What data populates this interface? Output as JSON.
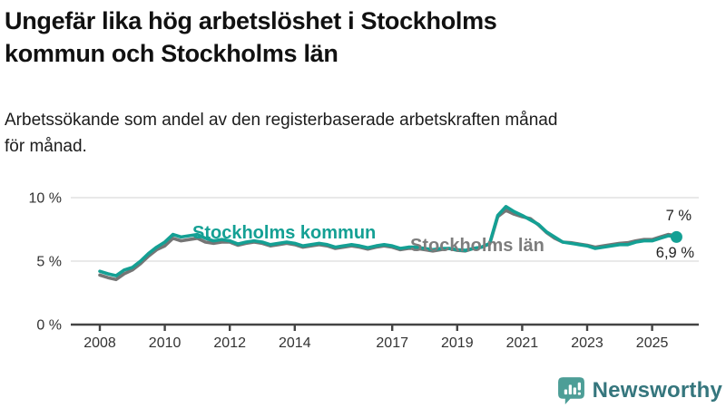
{
  "header": {
    "title": "Ungefär lika hög arbetslöshet i Stockholms\nkommun och Stockholms län",
    "subtitle": "Arbetssökande som andel av den registerbaserade arbetskraften månad\nför månad."
  },
  "chart_data": {
    "type": "line",
    "title": "Ungefär lika hög arbetslöshet i Stockholms kommun och Stockholms län",
    "xlabel": "",
    "ylabel": "Arbetssökande som andel av den registerbaserade arbetskraften",
    "x_domain": [
      2008,
      2026
    ],
    "y_domain": [
      0,
      10
    ],
    "grid": "horizontal",
    "x_label_ticks": [
      2008,
      2010,
      2012,
      2014,
      2017,
      2019,
      2021,
      2023,
      2025
    ],
    "y_ticks": [
      {
        "value": 0,
        "label": "0 %"
      },
      {
        "value": 5,
        "label": "5 %"
      },
      {
        "value": 10,
        "label": "10 %"
      }
    ],
    "x": [
      2008,
      2008.25,
      2008.5,
      2008.75,
      2009,
      2009.25,
      2009.5,
      2009.75,
      2010,
      2010.25,
      2010.5,
      2010.75,
      2011,
      2011.25,
      2011.5,
      2011.75,
      2012,
      2012.25,
      2012.5,
      2012.75,
      2013,
      2013.25,
      2013.5,
      2013.75,
      2014,
      2014.25,
      2014.5,
      2014.75,
      2015,
      2015.25,
      2015.5,
      2015.75,
      2016,
      2016.25,
      2016.5,
      2016.75,
      2017,
      2017.25,
      2017.5,
      2017.75,
      2018,
      2018.25,
      2018.5,
      2018.75,
      2019,
      2019.25,
      2019.5,
      2019.75,
      2020,
      2020.25,
      2020.5,
      2020.75,
      2021,
      2021.25,
      2021.5,
      2021.75,
      2022,
      2022.25,
      2022.5,
      2022.75,
      2023,
      2023.25,
      2023.5,
      2023.75,
      2024,
      2024.25,
      2024.5,
      2024.75,
      2025,
      2025.25,
      2025.5,
      2025.75
    ],
    "series": [
      {
        "id": "stockholms-lan",
        "name": "Stockholms län",
        "label": "Stockholms län",
        "color": "#757575",
        "label_color": "#7d7d7d",
        "end_label": "7 %",
        "end_value": 7.0,
        "values": [
          3.9,
          3.7,
          3.55,
          4.0,
          4.3,
          4.8,
          5.4,
          5.9,
          6.2,
          6.8,
          6.6,
          6.7,
          6.8,
          6.5,
          6.4,
          6.5,
          6.5,
          6.25,
          6.4,
          6.5,
          6.4,
          6.2,
          6.3,
          6.4,
          6.3,
          6.1,
          6.2,
          6.3,
          6.2,
          6.0,
          6.1,
          6.2,
          6.1,
          5.95,
          6.1,
          6.2,
          6.1,
          5.9,
          6.0,
          6.0,
          5.9,
          5.8,
          5.9,
          6.0,
          5.85,
          5.8,
          6.0,
          6.1,
          6.35,
          8.5,
          9.0,
          8.7,
          8.5,
          8.35,
          7.85,
          7.25,
          6.8,
          6.5,
          6.45,
          6.35,
          6.25,
          6.1,
          6.2,
          6.3,
          6.4,
          6.45,
          6.6,
          6.7,
          6.7,
          6.9,
          7.1,
          7.0
        ]
      },
      {
        "id": "stockholms-kommun",
        "name": "Stockholms kommun",
        "label": "Stockholms kommun",
        "color": "#14a094",
        "label_color": "#14a094",
        "end_label": "6,9 %",
        "end_value": 6.9,
        "values": [
          4.2,
          4.0,
          3.85,
          4.3,
          4.5,
          5.0,
          5.6,
          6.1,
          6.5,
          7.1,
          6.9,
          7.0,
          7.1,
          6.8,
          6.6,
          6.7,
          6.6,
          6.35,
          6.5,
          6.6,
          6.5,
          6.3,
          6.4,
          6.5,
          6.4,
          6.2,
          6.3,
          6.4,
          6.3,
          6.1,
          6.2,
          6.3,
          6.2,
          6.05,
          6.2,
          6.3,
          6.2,
          6.0,
          6.1,
          6.1,
          6.0,
          5.9,
          6.0,
          6.0,
          5.9,
          5.85,
          6.0,
          6.1,
          6.4,
          8.6,
          9.3,
          8.9,
          8.6,
          8.25,
          7.9,
          7.3,
          6.9,
          6.5,
          6.4,
          6.3,
          6.2,
          6.0,
          6.1,
          6.2,
          6.3,
          6.3,
          6.5,
          6.6,
          6.6,
          6.8,
          7.0,
          6.9
        ]
      }
    ],
    "end_dot": {
      "x": 2025.75,
      "value": 6.9,
      "color": "#14a094"
    },
    "end_labels": {
      "top": "7 %",
      "bottom": "6,9 %"
    }
  },
  "labels": {
    "kommun": "Stockholms kommun",
    "lan": "Stockholms län",
    "end_top": "7 %",
    "end_bottom": "6,9 %"
  },
  "footer": {
    "brand": "Newsworthy",
    "brand_color": "#35767d",
    "icon_color": "#4d9e97"
  }
}
